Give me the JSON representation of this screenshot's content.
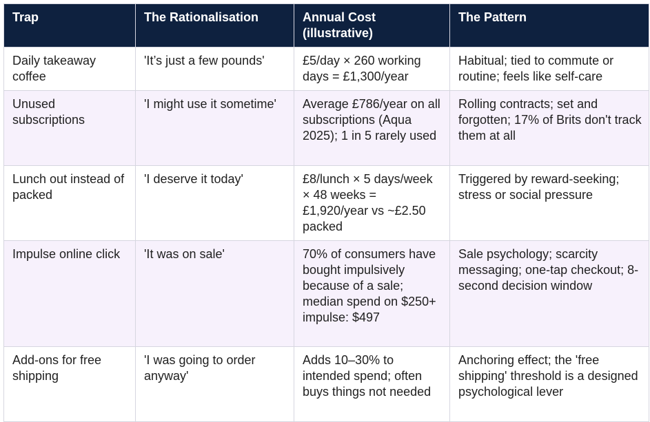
{
  "table": {
    "headers": [
      "Trap",
      "The Rationalisation",
      "Annual Cost (illustrative)",
      "The Pattern"
    ],
    "rows": [
      [
        "Daily takeaway coffee",
        "'It’s just a few pounds'",
        "£5/day × 260 working days = £1,300/year",
        "Habitual; tied to commute or routine; feels like self-care"
      ],
      [
        "Unused subscriptions",
        "'I might use it sometime'",
        "Average £786/year on all subscriptions (Aqua 2025); 1 in 5 rarely used",
        "Rolling contracts; set and forgotten; 17% of Brits don't track them at all"
      ],
      [
        "Lunch out instead of packed",
        "'I deserve it today'",
        "£8/lunch × 5 days/week × 48 weeks = £1,920/year vs ~£2.50 packed",
        "Triggered by reward-seeking; stress or social pressure"
      ],
      [
        "Impulse online click",
        "'It was on sale'",
        "70% of consumers have bought impulsively because of a sale; median spend on $250+ impulse: $497",
        "Sale psychology; scarcity messaging; one-tap checkout; 8-second decision window"
      ],
      [
        "Add-ons for free shipping",
        "'I was going to order anyway'",
        "Adds 10–30% to intended spend; often buys things not needed",
        "Anchoring effect; the 'free shipping' threshold is a designed psychological lever"
      ]
    ]
  }
}
